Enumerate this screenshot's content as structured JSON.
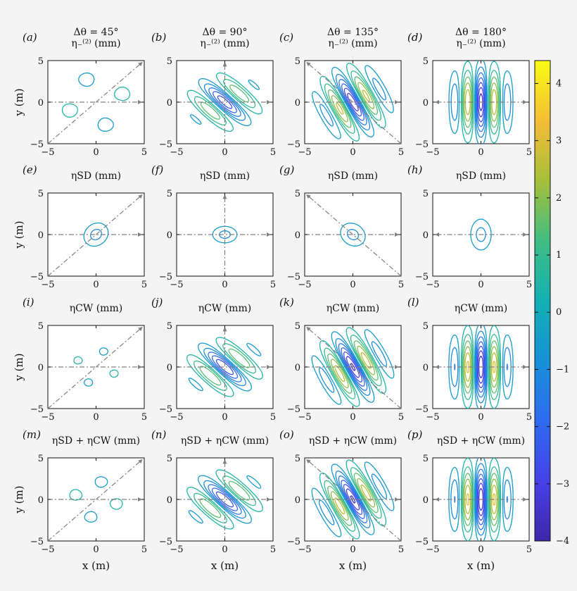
{
  "chart_data": {
    "type": "contour",
    "panel_grid": "4x4",
    "x_range": [
      -5,
      5
    ],
    "y_range": [
      -5,
      5
    ],
    "x_ticks": [
      "−5",
      "0",
      "5"
    ],
    "y_ticks": [
      "−5",
      "0",
      "5"
    ],
    "xlabel": "x (m)",
    "ylabel": "y (m)",
    "column_titles": [
      "Δθ = 45°",
      "Δθ = 90°",
      "Δθ = 135°",
      "Δθ = 180°"
    ],
    "colorbar": {
      "range": [
        -4,
        4.4
      ],
      "ticks": [
        "4",
        "3",
        "2",
        "1",
        "0",
        "−1",
        "−2",
        "−3",
        "−4"
      ],
      "tick_values": [
        4,
        3,
        2,
        1,
        0,
        -1,
        -2,
        -3,
        -4
      ]
    },
    "panels": [
      {
        "label": "(a)",
        "title": "η₋⁽²⁾ (mm)",
        "dtheta": 45,
        "kind": "etam"
      },
      {
        "label": "(b)",
        "title": "η₋⁽²⁾ (mm)",
        "dtheta": 90,
        "kind": "etam"
      },
      {
        "label": "(c)",
        "title": "η₋⁽²⁾ (mm)",
        "dtheta": 135,
        "kind": "etam"
      },
      {
        "label": "(d)",
        "title": "η₋⁽²⁾ (mm)",
        "dtheta": 180,
        "kind": "etam"
      },
      {
        "label": "(e)",
        "title": "ηSD (mm)",
        "dtheta": 45,
        "kind": "sd"
      },
      {
        "label": "(f)",
        "title": "ηSD (mm)",
        "dtheta": 90,
        "kind": "sd"
      },
      {
        "label": "(g)",
        "title": "ηSD (mm)",
        "dtheta": 135,
        "kind": "sd"
      },
      {
        "label": "(h)",
        "title": "ηSD (mm)",
        "dtheta": 180,
        "kind": "sd"
      },
      {
        "label": "(i)",
        "title": "ηCW (mm)",
        "dtheta": 45,
        "kind": "cw"
      },
      {
        "label": "(j)",
        "title": "ηCW (mm)",
        "dtheta": 90,
        "kind": "cw"
      },
      {
        "label": "(k)",
        "title": "ηCW (mm)",
        "dtheta": 135,
        "kind": "cw"
      },
      {
        "label": "(l)",
        "title": "ηCW (mm)",
        "dtheta": 180,
        "kind": "cw"
      },
      {
        "label": "(m)",
        "title": "ηSD + ηCW (mm)",
        "dtheta": 45,
        "kind": "sum"
      },
      {
        "label": "(n)",
        "title": "ηSD + ηCW (mm)",
        "dtheta": 90,
        "kind": "sum"
      },
      {
        "label": "(o)",
        "title": "ηSD + ηCW (mm)",
        "dtheta": 135,
        "kind": "sum"
      },
      {
        "label": "(p)",
        "title": "ηSD + ηCW (mm)",
        "dtheta": 180,
        "kind": "sum"
      }
    ]
  }
}
